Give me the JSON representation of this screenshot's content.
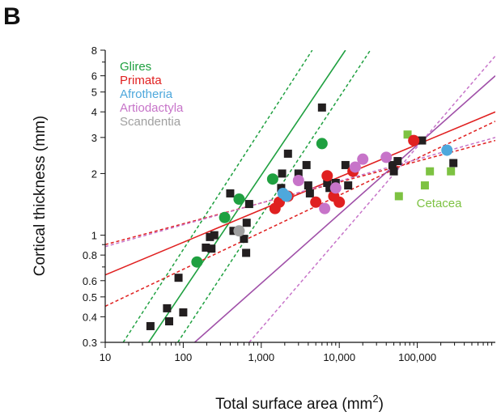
{
  "panel_label": "B",
  "chart_data": {
    "type": "scatter",
    "xlabel_main": "Total surface area (mm",
    "xlabel_sup": "2",
    "xlabel_end": ")",
    "ylabel": "Cortical thickness (mm)",
    "xscale": "log",
    "yscale": "log",
    "xlim": [
      10,
      1000000
    ],
    "ylim": [
      0.3,
      8
    ],
    "x_ticks": [
      {
        "value": 10,
        "label": "10"
      },
      {
        "value": 100,
        "label": "100"
      },
      {
        "value": 1000,
        "label": "1,000"
      },
      {
        "value": 10000,
        "label": "10,000"
      },
      {
        "value": 100000,
        "label": "100,000"
      }
    ],
    "y_ticks": [
      {
        "value": 0.3,
        "label": "0.3"
      },
      {
        "value": 0.4,
        "label": "0.4"
      },
      {
        "value": 0.5,
        "label": "0.5"
      },
      {
        "value": 0.6,
        "label": "0.6"
      },
      {
        "value": 0.8,
        "label": "0.8"
      },
      {
        "value": 1,
        "label": "1"
      },
      {
        "value": 2,
        "label": "2"
      },
      {
        "value": 3,
        "label": "3"
      },
      {
        "value": 4,
        "label": "4"
      },
      {
        "value": 5,
        "label": "5"
      },
      {
        "value": 6,
        "label": "6"
      },
      {
        "value": 8,
        "label": "8"
      }
    ],
    "legend_position": "top-left",
    "legend": [
      {
        "label": "Glires",
        "color": "#1fa040"
      },
      {
        "label": "Primata",
        "color": "#e02020"
      },
      {
        "label": "Afrotheria",
        "color": "#4ea8dc"
      },
      {
        "label": "Artiodactyla",
        "color": "#c774c9"
      },
      {
        "label": "Scandentia",
        "color": "#a0a0a0"
      }
    ],
    "annotations": [
      {
        "text": "Cetacea",
        "x": 200000,
        "y": 1.5,
        "color": "#7dc242"
      }
    ],
    "series": [
      {
        "group": "other",
        "marker": "square",
        "color": "#231f20",
        "points": [
          [
            38,
            0.36
          ],
          [
            62,
            0.44
          ],
          [
            66,
            0.38
          ],
          [
            87,
            0.62
          ],
          [
            100,
            0.42
          ],
          [
            195,
            0.87
          ],
          [
            220,
            0.98
          ],
          [
            230,
            0.86
          ],
          [
            250,
            1.0
          ],
          [
            400,
            1.6
          ],
          [
            440,
            1.05
          ],
          [
            600,
            0.96
          ],
          [
            640,
            0.82
          ],
          [
            650,
            1.15
          ],
          [
            700,
            1.42
          ],
          [
            1800,
            1.7
          ],
          [
            1850,
            2.0
          ],
          [
            2200,
            2.5
          ],
          [
            3000,
            2.0
          ],
          [
            3800,
            2.2
          ],
          [
            4000,
            1.75
          ],
          [
            4200,
            1.6
          ],
          [
            6000,
            4.2
          ],
          [
            7000,
            1.8
          ],
          [
            7500,
            1.7
          ],
          [
            9000,
            1.8
          ],
          [
            12000,
            2.2
          ],
          [
            13000,
            1.75
          ],
          [
            48000,
            2.2
          ],
          [
            50000,
            2.05
          ],
          [
            56000,
            2.3
          ],
          [
            115000,
            2.9
          ],
          [
            290000,
            2.25
          ]
        ]
      },
      {
        "group": "Cetacea",
        "marker": "square",
        "color": "#7dc242",
        "points": [
          [
            58000,
            1.55
          ],
          [
            75000,
            3.1
          ],
          [
            125000,
            1.75
          ],
          [
            145000,
            2.05
          ],
          [
            270000,
            2.05
          ]
        ]
      },
      {
        "group": "Glires",
        "marker": "circle",
        "color": "#1fa040",
        "points": [
          [
            150,
            0.74
          ],
          [
            340,
            1.22
          ],
          [
            520,
            1.5
          ],
          [
            1400,
            1.88
          ],
          [
            6000,
            2.8
          ]
        ]
      },
      {
        "group": "Primata",
        "marker": "circle",
        "color": "#e02020",
        "points": [
          [
            1500,
            1.35
          ],
          [
            1700,
            1.45
          ],
          [
            2200,
            1.55
          ],
          [
            5000,
            1.45
          ],
          [
            7000,
            1.95
          ],
          [
            8500,
            1.55
          ],
          [
            10000,
            1.45
          ],
          [
            15000,
            2.05
          ],
          [
            90000,
            2.9
          ]
        ]
      },
      {
        "group": "Afrotheria",
        "marker": "circle",
        "color": "#4ea8dc",
        "points": [
          [
            1900,
            1.6
          ],
          [
            2100,
            1.55
          ],
          [
            240000,
            2.6
          ]
        ]
      },
      {
        "group": "Artiodactyla",
        "marker": "circle",
        "color": "#c774c9",
        "points": [
          [
            3000,
            1.85
          ],
          [
            6500,
            1.35
          ],
          [
            9000,
            1.7
          ],
          [
            16000,
            2.15
          ],
          [
            20000,
            2.35
          ],
          [
            40000,
            2.4
          ]
        ]
      },
      {
        "group": "Scandentia",
        "marker": "circle",
        "color": "#a0a0a0",
        "points": [
          [
            520,
            1.05
          ]
        ]
      }
    ],
    "fit_lines": [
      {
        "group": "Glires",
        "style": "solid",
        "color": "#1fa040",
        "points": [
          [
            36,
            0.3
          ],
          [
            12000,
            8
          ]
        ]
      },
      {
        "group": "Glires",
        "style": "dashed",
        "color": "#1fa040",
        "points": [
          [
            17,
            0.3
          ],
          [
            4500,
            8
          ]
        ]
      },
      {
        "group": "Glires",
        "style": "dashed",
        "color": "#1fa040",
        "points": [
          [
            85,
            0.3
          ],
          [
            25000,
            8
          ]
        ]
      },
      {
        "group": "Primata",
        "style": "solid",
        "color": "#e02020",
        "points": [
          [
            10,
            0.64
          ],
          [
            1000000,
            4.0
          ]
        ]
      },
      {
        "group": "Primata",
        "style": "dashed",
        "color": "#e02020",
        "points": [
          [
            10,
            0.45
          ],
          [
            1000000,
            3.6
          ]
        ]
      },
      {
        "group": "Primata",
        "style": "dashed",
        "color": "#e02020",
        "points": [
          [
            10,
            0.9
          ],
          [
            1000000,
            2.9
          ]
        ]
      },
      {
        "group": "Artiodactyla",
        "style": "solid",
        "color": "#a050a8",
        "points": [
          [
            140,
            0.3
          ],
          [
            1000000,
            6.0
          ]
        ]
      },
      {
        "group": "Artiodactyla",
        "style": "dashed",
        "color": "#c774c9",
        "points": [
          [
            10,
            0.88
          ],
          [
            1000000,
            3.0
          ]
        ]
      },
      {
        "group": "Artiodactyla",
        "style": "dashed",
        "color": "#c774c9",
        "points": [
          [
            700,
            0.3
          ],
          [
            1000000,
            7.5
          ]
        ]
      }
    ]
  }
}
